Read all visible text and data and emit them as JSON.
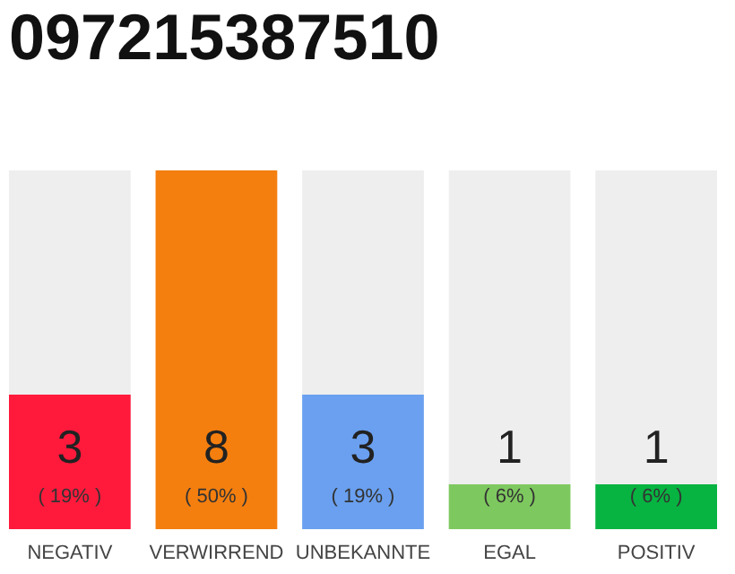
{
  "chart_data": {
    "type": "bar",
    "title": "097215387510",
    "categories": [
      "NEGATIV",
      "VERWIRREND",
      "UNBEKANNTE",
      "EGAL",
      "POSITIV"
    ],
    "stacked": true,
    "series": [
      {
        "colors": [
          "#ff1a3c",
          "#f47f0f",
          "#6aa0ef",
          "#7ec95f",
          "#07b441"
        ],
        "values": [
          3,
          8,
          3,
          1,
          1
        ],
        "value_labels": [
          "3",
          "8",
          "3",
          "1",
          "1"
        ]
      },
      {
        "color": "#eeeeee",
        "values": [
          5,
          0,
          5,
          7,
          7
        ]
      }
    ],
    "annotations": [
      "( 19% )",
      "( 50% )",
      "( 19% )",
      "( 6% )",
      "( 6% )"
    ]
  }
}
